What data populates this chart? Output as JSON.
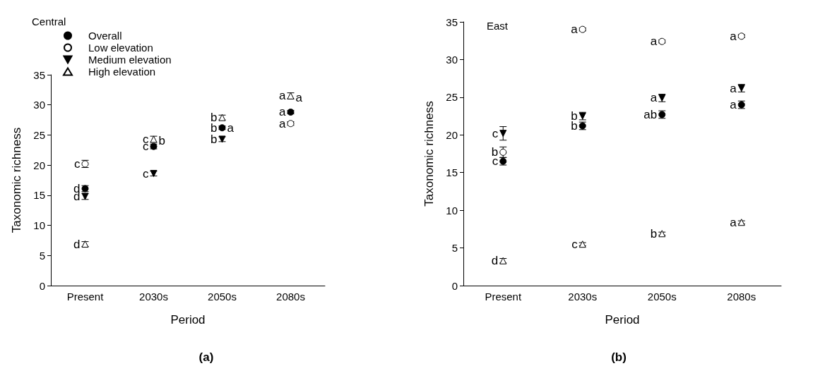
{
  "chart_data": [
    {
      "type": "scatter",
      "title": "Central",
      "xlabel": "Period",
      "ylabel": "Taxonomic richness",
      "categories": [
        "Present",
        "2030s",
        "2050s",
        "2080s"
      ],
      "ylim": [
        0,
        35
      ],
      "yticks": [
        0,
        5,
        10,
        15,
        20,
        25,
        30,
        35
      ],
      "grid": false,
      "legend": "top left",
      "series": [
        {
          "name": "Overall",
          "color": "#000000",
          "marker": "circle",
          "values": [
            16.1,
            23.1,
            26.2,
            28.8
          ],
          "errors": [
            0.5,
            0.4,
            0.3,
            0.3
          ]
        },
        {
          "name": "Low elevation",
          "color": "#ffffff",
          "marker": "circle",
          "values": [
            20.2,
            null,
            null,
            26.9
          ],
          "errors": [
            0.6,
            null,
            null,
            0.3
          ]
        },
        {
          "name": "Medium elevation",
          "color": "#000000",
          "marker": "triangle-down",
          "values": [
            14.8,
            18.6,
            24.3,
            null
          ],
          "errors": [
            0.5,
            0.4,
            0.4,
            null
          ]
        },
        {
          "name": "High elevation",
          "color": "#ffffff",
          "marker": "triangle",
          "values": [
            6.9,
            24.3,
            27.9,
            31.5
          ],
          "errors": [
            0.4,
            0.5,
            0.4,
            0.5
          ]
        }
      ],
      "annotations": [
        {
          "text": "d",
          "x": "Present",
          "y": 16.1
        },
        {
          "text": "c",
          "x": "Present",
          "y": 20.2
        },
        {
          "text": "d",
          "x": "Present",
          "y": 14.8
        },
        {
          "text": "d",
          "x": "Present",
          "y": 6.9
        },
        {
          "text": "c",
          "x": "2030s",
          "y": 24.3
        },
        {
          "text": "b",
          "x": "2030s",
          "y": 24.0
        },
        {
          "text": "c",
          "x": "2030s",
          "y": 23.1
        },
        {
          "text": "c",
          "x": "2030s",
          "y": 18.6
        },
        {
          "text": "b",
          "x": "2050s",
          "y": 27.9
        },
        {
          "text": "b",
          "x": "2050s",
          "y": 26.2
        },
        {
          "text": "a",
          "x": "2050s",
          "y": 26.2
        },
        {
          "text": "b",
          "x": "2050s",
          "y": 24.3
        },
        {
          "text": "a",
          "x": "2080s",
          "y": 31.5
        },
        {
          "text": "a",
          "x": "2080s",
          "y": 31.2
        },
        {
          "text": "a",
          "x": "2080s",
          "y": 28.8
        },
        {
          "text": "a",
          "x": "2080s",
          "y": 26.9
        },
        "(a)"
      ]
    },
    {
      "type": "scatter",
      "title": "East",
      "xlabel": "Period",
      "ylabel": "Taxonomic richness",
      "categories": [
        "Present",
        "2030s",
        "2050s",
        "2080s"
      ],
      "ylim": [
        0,
        35
      ],
      "yticks": [
        0,
        5,
        10,
        15,
        20,
        25,
        30,
        35
      ],
      "grid": false,
      "legend": false,
      "series": [
        {
          "color": "#000000",
          "marker": "circle",
          "values": [
            16.5,
            21.2,
            22.7,
            24.0
          ],
          "errors": [
            0.5,
            0.5,
            0.5,
            0.5
          ]
        },
        {
          "color": "#ffffff",
          "marker": "circle",
          "values": [
            17.7,
            34.0,
            32.4,
            33.1
          ],
          "errors": [
            0.7,
            0.2,
            0.2,
            0.2
          ]
        },
        {
          "color": "#000000",
          "marker": "triangle-down",
          "values": [
            20.2,
            22.5,
            24.9,
            26.2
          ],
          "errors": [
            0.9,
            0.5,
            0.5,
            0.5
          ]
        },
        {
          "color": "#ffffff",
          "marker": "triangle",
          "values": [
            3.3,
            5.5,
            6.9,
            8.4
          ],
          "errors": [
            0.3,
            0.2,
            0.2,
            0.2
          ]
        }
      ],
      "annotations": [
        {
          "text": "c",
          "x": "Present",
          "y": 16.5
        },
        {
          "text": "b",
          "x": "Present",
          "y": 17.7
        },
        {
          "text": "c",
          "x": "Present",
          "y": 20.2
        },
        {
          "text": "d",
          "x": "Present",
          "y": 3.3
        },
        {
          "text": "b",
          "x": "2030s",
          "y": 21.2
        },
        {
          "text": "a",
          "x": "2030s",
          "y": 34.0
        },
        {
          "text": "b",
          "x": "2030s",
          "y": 22.5
        },
        {
          "text": "c",
          "x": "2030s",
          "y": 5.5
        },
        {
          "text": "ab",
          "x": "2050s",
          "y": 22.7
        },
        {
          "text": "a",
          "x": "2050s",
          "y": 32.4
        },
        {
          "text": "a",
          "x": "2050s",
          "y": 24.9
        },
        {
          "text": "b",
          "x": "2050s",
          "y": 6.9
        },
        {
          "text": "a",
          "x": "2080s",
          "y": 24.0
        },
        {
          "text": "a",
          "x": "2080s",
          "y": 33.1
        },
        {
          "text": "a",
          "x": "2080s",
          "y": 26.2
        },
        {
          "text": "a",
          "x": "2080s",
          "y": 8.4
        },
        "(b)"
      ]
    }
  ]
}
